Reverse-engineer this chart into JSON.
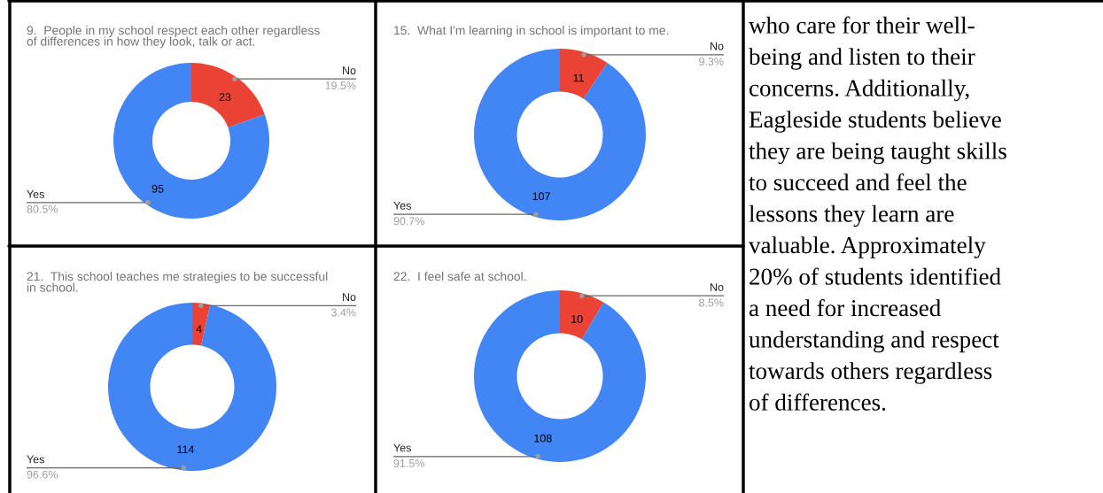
{
  "chart_data": [
    {
      "type": "donut",
      "title": "9.  People in my school respect each other regardless\nof differences in how they look, talk or act.",
      "categories": [
        "No",
        "Yes"
      ],
      "values": [
        19.5,
        80.5
      ],
      "colors": [
        "#ea4335",
        "#4285f4"
      ],
      "value_labels": [
        "19.5%",
        "80.5%"
      ],
      "annotations": [
        {
          "text": "23",
          "x": "No"
        },
        {
          "text": "95",
          "x": "Yes"
        }
      ]
    },
    {
      "type": "donut",
      "title": "15.  What I'm learning in school is important to me.",
      "categories": [
        "No",
        "Yes"
      ],
      "values": [
        9.3,
        90.7
      ],
      "colors": [
        "#ea4335",
        "#4285f4"
      ],
      "value_labels": [
        "9.3%",
        "90.7%"
      ],
      "annotations": [
        {
          "text": "11",
          "x": "No"
        },
        {
          "text": "107",
          "x": "Yes"
        }
      ]
    },
    {
      "type": "donut",
      "title": "21.  This school teaches me strategies to be successful\nin school.",
      "categories": [
        "No",
        "Yes"
      ],
      "values": [
        3.4,
        96.6
      ],
      "colors": [
        "#ea4335",
        "#4285f4"
      ],
      "value_labels": [
        "3.4%",
        "96.6%"
      ],
      "annotations": [
        {
          "text": "4",
          "x": "No"
        },
        {
          "text": "114",
          "x": "Yes"
        }
      ]
    },
    {
      "type": "donut",
      "title": "22.  I feel safe at school.",
      "categories": [
        "No",
        "Yes"
      ],
      "values": [
        8.5,
        91.5
      ],
      "colors": [
        "#ea4335",
        "#4285f4"
      ],
      "value_labels": [
        "8.5%",
        "91.5%"
      ],
      "annotations": [
        {
          "text": "10",
          "x": "No"
        },
        {
          "text": "108",
          "x": "Yes"
        }
      ]
    },
    {
      "type": "other",
      "annotations": [
        "who care for their well-",
        "being and listen to their",
        "concerns. Additionally,",
        "Eagleside students believe",
        "they are being taught skills",
        "to succeed and feel the",
        "lessons they learn are",
        "valuable. Approximately",
        "20% of students identified",
        "a need for increased",
        "understanding and respect",
        "towards others regardless",
        "of differences."
      ]
    }
  ]
}
